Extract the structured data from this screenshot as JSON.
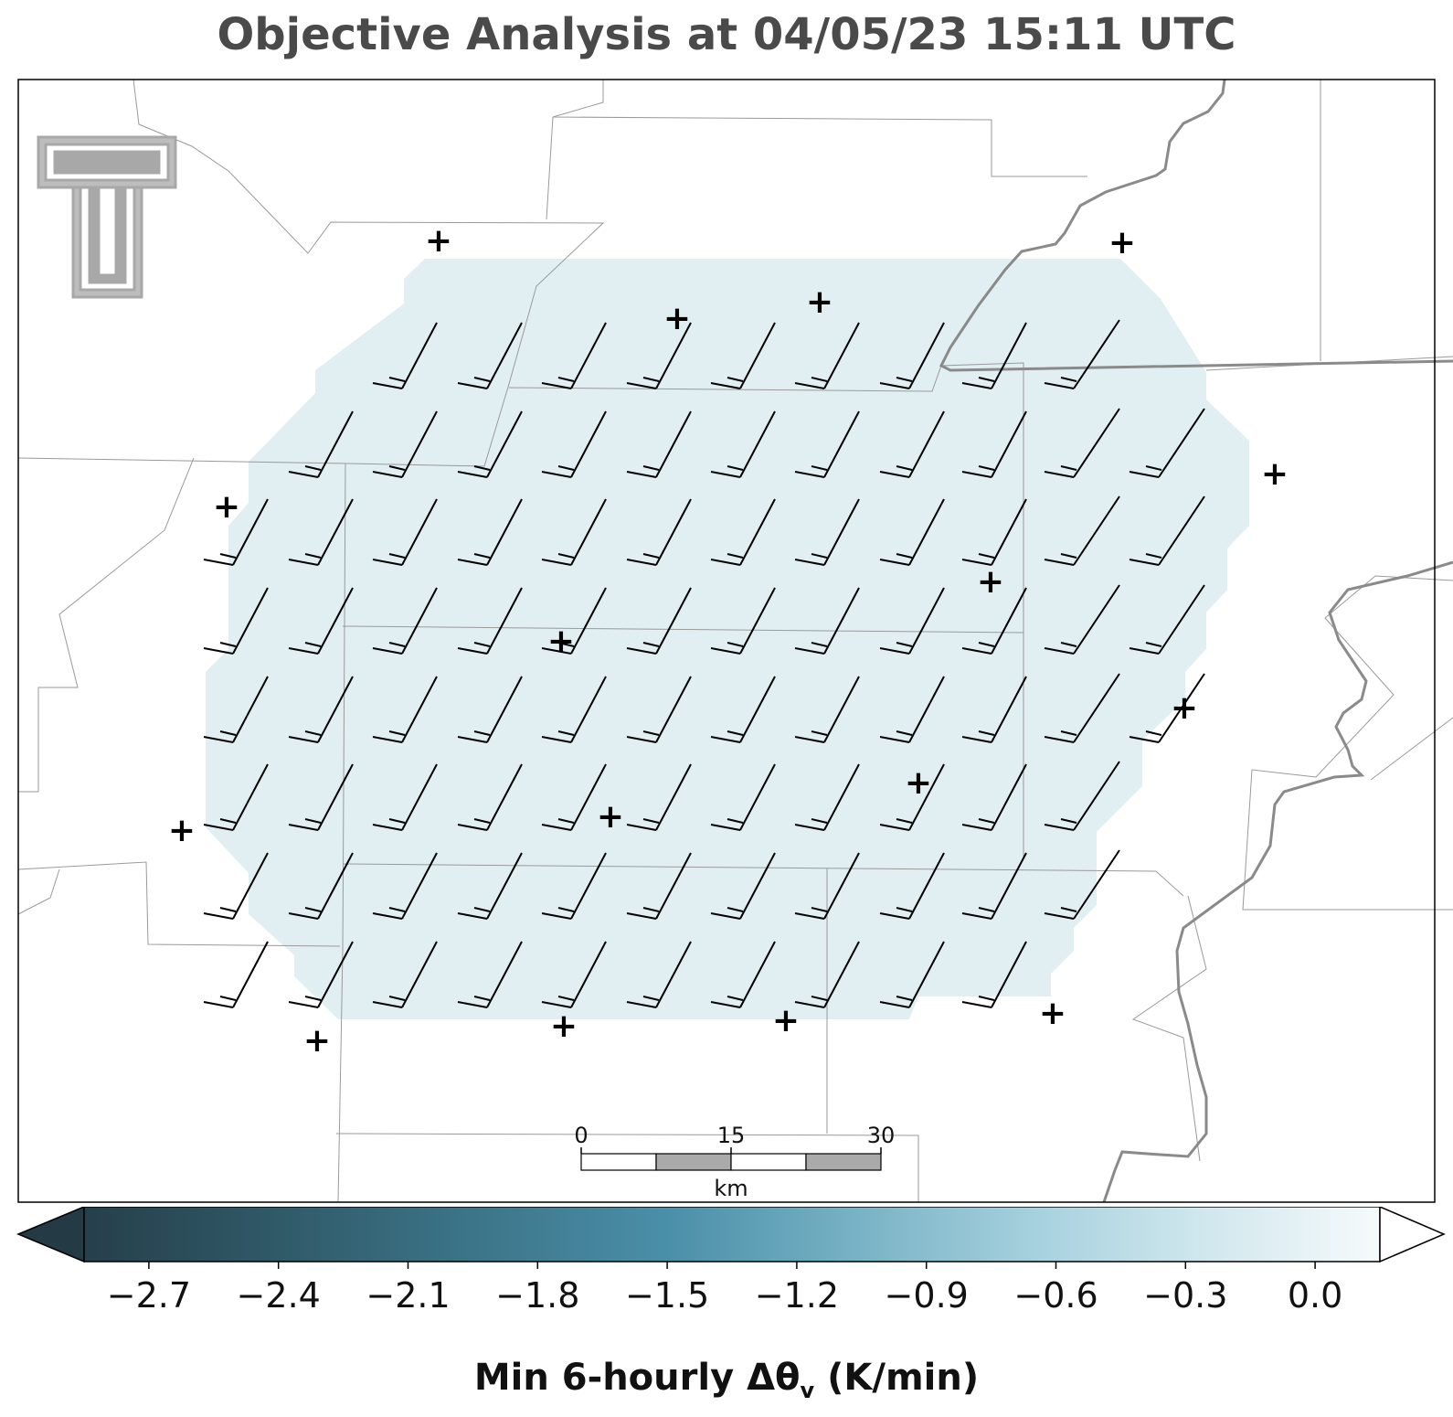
{
  "title": "Objective Analysis at 04/05/23 15:11 UTC",
  "colorbar": {
    "label_main": "Min 6-hourly Δθ",
    "label_sub": "v",
    "label_units": " (K/min)",
    "min": -2.85,
    "max": 0.15,
    "ticks": [
      "−2.7",
      "−2.4",
      "−2.1",
      "−1.8",
      "−1.5",
      "−1.2",
      "−0.9",
      "−0.6",
      "−0.3",
      "0.0"
    ],
    "tick_values": [
      -2.7,
      -2.4,
      -2.1,
      -1.8,
      -1.5,
      -1.2,
      -0.9,
      -0.6,
      -0.3,
      0.0
    ],
    "extend": "both",
    "colors": [
      "#263f4b",
      "#2f5866",
      "#3a7185",
      "#4a8fa8",
      "#79b3c6",
      "#a8d2df",
      "#d2e8ee",
      "#f6fafb"
    ]
  },
  "scale_bar": {
    "labels": [
      "0",
      "15",
      "30"
    ],
    "unit": "km"
  },
  "logo": {
    "name": "Texas Tech Double T",
    "color": "#a8a8a8"
  },
  "field": {
    "fill": "#e1eff3",
    "value_range_K_per_min": [
      -0.6,
      -0.3
    ]
  },
  "stations_marker": "+",
  "wind_barbs": {
    "color": "#000000",
    "grid_rows": 8,
    "grid_cols": 12
  }
}
